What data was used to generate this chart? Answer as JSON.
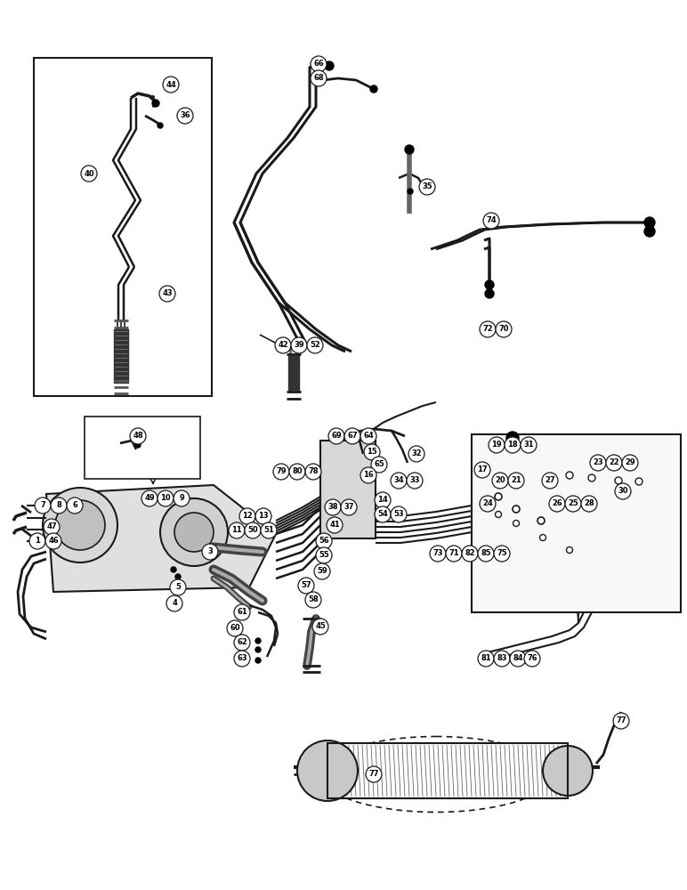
{
  "bg_color": "#ffffff",
  "lc": "#1a1a1a",
  "fig_width": 7.72,
  "fig_height": 10.0,
  "dpi": 100,
  "circle_labels": [
    [
      44,
      192,
      95
    ],
    [
      36,
      208,
      130
    ],
    [
      40,
      100,
      195
    ],
    [
      43,
      188,
      330
    ],
    [
      66,
      358,
      72
    ],
    [
      68,
      358,
      88
    ],
    [
      35,
      480,
      210
    ],
    [
      42,
      318,
      388
    ],
    [
      39,
      336,
      388
    ],
    [
      52,
      354,
      388
    ],
    [
      74,
      552,
      248
    ],
    [
      72,
      548,
      370
    ],
    [
      70,
      566,
      370
    ],
    [
      48,
      155,
      490
    ],
    [
      7,
      48,
      568
    ],
    [
      8,
      66,
      568
    ],
    [
      6,
      84,
      568
    ],
    [
      47,
      58,
      592
    ],
    [
      1,
      42,
      608
    ],
    [
      46,
      60,
      608
    ],
    [
      49,
      168,
      560
    ],
    [
      10,
      186,
      560
    ],
    [
      9,
      204,
      560
    ],
    [
      12,
      278,
      580
    ],
    [
      13,
      296,
      580
    ],
    [
      11,
      266,
      596
    ],
    [
      50,
      284,
      596
    ],
    [
      51,
      302,
      596
    ],
    [
      3,
      236,
      620
    ],
    [
      5,
      200,
      660
    ],
    [
      4,
      196,
      678
    ],
    [
      79,
      316,
      530
    ],
    [
      80,
      334,
      530
    ],
    [
      78,
      352,
      530
    ],
    [
      69,
      378,
      490
    ],
    [
      67,
      396,
      490
    ],
    [
      64,
      414,
      490
    ],
    [
      15,
      418,
      508
    ],
    [
      65,
      426,
      522
    ],
    [
      16,
      414,
      534
    ],
    [
      32,
      468,
      510
    ],
    [
      34,
      448,
      540
    ],
    [
      33,
      466,
      540
    ],
    [
      38,
      374,
      570
    ],
    [
      37,
      392,
      570
    ],
    [
      14,
      430,
      562
    ],
    [
      54,
      430,
      578
    ],
    [
      53,
      448,
      578
    ],
    [
      41,
      376,
      590
    ],
    [
      56,
      364,
      608
    ],
    [
      55,
      364,
      624
    ],
    [
      59,
      362,
      642
    ],
    [
      57,
      344,
      658
    ],
    [
      58,
      352,
      674
    ],
    [
      45,
      360,
      704
    ],
    [
      61,
      272,
      688
    ],
    [
      60,
      264,
      706
    ],
    [
      62,
      272,
      722
    ],
    [
      63,
      272,
      740
    ],
    [
      73,
      492,
      622
    ],
    [
      71,
      510,
      622
    ],
    [
      82,
      528,
      622
    ],
    [
      85,
      546,
      622
    ],
    [
      75,
      564,
      622
    ],
    [
      81,
      546,
      740
    ],
    [
      83,
      564,
      740
    ],
    [
      84,
      582,
      740
    ],
    [
      76,
      598,
      740
    ],
    [
      77,
      420,
      870
    ],
    [
      77,
      698,
      810
    ],
    [
      19,
      558,
      500
    ],
    [
      18,
      576,
      500
    ],
    [
      31,
      594,
      500
    ],
    [
      17,
      542,
      528
    ],
    [
      20,
      562,
      540
    ],
    [
      21,
      580,
      540
    ],
    [
      27,
      618,
      540
    ],
    [
      24,
      548,
      566
    ],
    [
      26,
      626,
      566
    ],
    [
      25,
      644,
      566
    ],
    [
      28,
      662,
      566
    ],
    [
      23,
      672,
      520
    ],
    [
      22,
      690,
      520
    ],
    [
      29,
      708,
      520
    ],
    [
      30,
      700,
      552
    ]
  ]
}
